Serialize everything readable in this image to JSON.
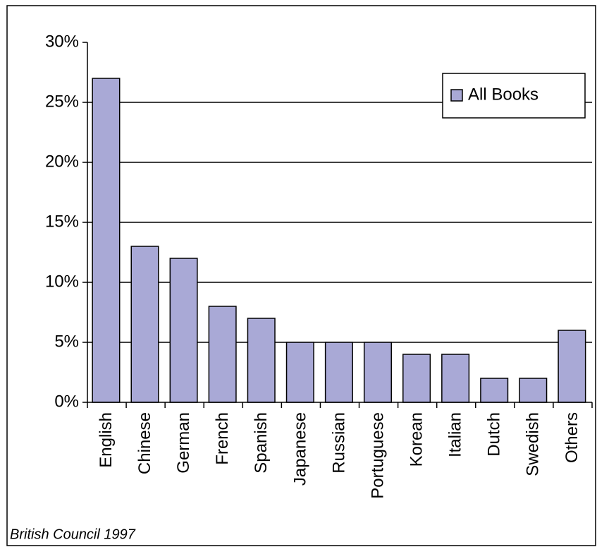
{
  "chart_data": {
    "type": "bar",
    "categories": [
      "English",
      "Chinese",
      "German",
      "French",
      "Spanish",
      "Japanese",
      "Russian",
      "Portuguese",
      "Korean",
      "Italian",
      "Dutch",
      "Swedish",
      "Others"
    ],
    "series": [
      {
        "name": "All Books",
        "color": "#a9a9d6",
        "values": [
          27,
          13,
          12,
          8,
          7,
          5,
          5,
          5,
          4,
          4,
          2,
          2,
          6
        ]
      }
    ],
    "ylim": [
      0,
      30
    ],
    "yticks": [
      {
        "value": 0,
        "label": "0%"
      },
      {
        "value": 5,
        "label": "5%"
      },
      {
        "value": 10,
        "label": "10%"
      },
      {
        "value": 15,
        "label": "15%"
      },
      {
        "value": 20,
        "label": "20%"
      },
      {
        "value": 25,
        "label": "25%"
      },
      {
        "value": 30,
        "label": "30%"
      }
    ],
    "grid": true,
    "legend": "top-right",
    "annotation": "British Council 1997"
  }
}
